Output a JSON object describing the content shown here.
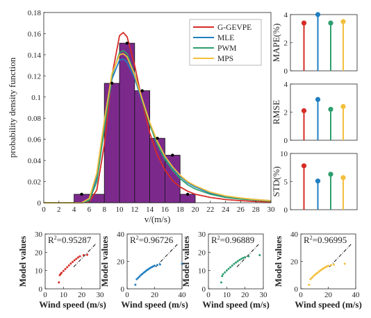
{
  "chart_data": [
    {
      "id": "main",
      "type": "bar+line",
      "title": "",
      "xlabel": "v/(m/s)",
      "ylabel": "probability density function",
      "xlim": [
        0,
        30
      ],
      "ylim": [
        0,
        0.18
      ],
      "xticks": [
        0,
        2,
        4,
        6,
        8,
        10,
        12,
        14,
        16,
        18,
        20,
        22,
        24,
        26,
        28,
        30
      ],
      "yticks": [
        0,
        0.02,
        0.04,
        0.06,
        0.08,
        0.1,
        0.12,
        0.14,
        0.16,
        0.18
      ],
      "ytick_labels": [
        "0",
        "0.02",
        "0.04",
        "0.06",
        "0.08",
        "0.1",
        "0.12",
        "0.14",
        "0.16",
        "0.18"
      ],
      "bar_color": "#7b2a8c",
      "histogram": [
        {
          "x0": 4,
          "x1": 6,
          "y": 0.008
        },
        {
          "x0": 6,
          "x1": 8,
          "y": 0.008
        },
        {
          "x0": 8,
          "x1": 10,
          "y": 0.113
        },
        {
          "x0": 10,
          "x1": 12,
          "y": 0.151
        },
        {
          "x0": 12,
          "x1": 14,
          "y": 0.106
        },
        {
          "x0": 14,
          "x1": 16,
          "y": 0.061
        },
        {
          "x0": 16,
          "x1": 18,
          "y": 0.045
        },
        {
          "x0": 18,
          "x1": 20,
          "y": 0.008
        }
      ],
      "points": [
        [
          5,
          0.008
        ],
        [
          9,
          0.113
        ],
        [
          11,
          0.151
        ],
        [
          13,
          0.106
        ],
        [
          15,
          0.061
        ],
        [
          17,
          0.045
        ],
        [
          19,
          0.008
        ]
      ],
      "legend_position": "top-right",
      "series": [
        {
          "name": "G-GEVPE",
          "color": "#d62c27",
          "x": [
            0,
            2,
            4,
            5,
            6,
            7,
            8,
            9,
            10,
            10.5,
            11,
            12,
            13,
            14,
            15,
            16,
            17,
            18,
            19,
            20,
            22,
            24,
            26,
            28,
            30
          ],
          "y": [
            0,
            0,
            0,
            0,
            0.001,
            0.012,
            0.055,
            0.12,
            0.158,
            0.161,
            0.157,
            0.13,
            0.096,
            0.066,
            0.045,
            0.031,
            0.021,
            0.015,
            0.011,
            0.008,
            0.005,
            0.003,
            0.002,
            0.0012,
            0.0008
          ]
        },
        {
          "name": "MLE",
          "color": "#1f7fc0",
          "x": [
            0,
            2,
            4,
            5,
            6,
            7,
            8,
            9,
            10,
            10.5,
            11,
            12,
            13,
            14,
            15,
            16,
            17,
            18,
            19,
            20,
            22,
            24,
            26,
            28,
            30
          ],
          "y": [
            0,
            0,
            0,
            0,
            0.003,
            0.024,
            0.072,
            0.117,
            0.135,
            0.136,
            0.133,
            0.118,
            0.096,
            0.075,
            0.057,
            0.043,
            0.033,
            0.025,
            0.019,
            0.015,
            0.009,
            0.006,
            0.004,
            0.003,
            0.002
          ]
        },
        {
          "name": "PWM",
          "color": "#2e9e6f",
          "x": [
            0,
            2,
            4,
            5,
            6,
            7,
            8,
            9,
            10,
            10.5,
            11,
            12,
            13,
            14,
            15,
            16,
            17,
            18,
            19,
            20,
            22,
            24,
            26,
            28,
            30
          ],
          "y": [
            0,
            0,
            0,
            0,
            0.002,
            0.02,
            0.07,
            0.12,
            0.142,
            0.144,
            0.141,
            0.122,
            0.097,
            0.074,
            0.055,
            0.041,
            0.031,
            0.023,
            0.017,
            0.013,
            0.008,
            0.005,
            0.0035,
            0.0025,
            0.0015
          ]
        },
        {
          "name": "MPS",
          "color": "#f3bf3c",
          "x": [
            0,
            2,
            4,
            5,
            6,
            7,
            8,
            9,
            10,
            10.5,
            11,
            12,
            13,
            14,
            15,
            16,
            17,
            18,
            19,
            20,
            22,
            24,
            26,
            28,
            30
          ],
          "y": [
            0,
            0,
            0,
            0,
            0.004,
            0.028,
            0.078,
            0.122,
            0.14,
            0.141,
            0.138,
            0.121,
            0.098,
            0.076,
            0.058,
            0.044,
            0.034,
            0.026,
            0.02,
            0.016,
            0.01,
            0.0065,
            0.0045,
            0.003,
            0.002
          ]
        }
      ]
    },
    {
      "id": "mape",
      "type": "stem",
      "ylabel": "MAPE(%)",
      "ylim": [
        0,
        4
      ],
      "yticks": [
        0,
        2,
        4
      ],
      "ytick_labels": [
        "0",
        "2",
        "4"
      ],
      "values": [
        3.4,
        4.0,
        3.4,
        3.5
      ],
      "colors": [
        "#d62c27",
        "#1f7fc0",
        "#2e9e6f",
        "#f3bf3c"
      ]
    },
    {
      "id": "rmse",
      "type": "stem",
      "ylabel": "RMSE",
      "ylim": [
        0,
        4
      ],
      "yticks": [
        0,
        2,
        4
      ],
      "ytick_labels": [
        "0",
        "2",
        "4"
      ],
      "values": [
        2.1,
        2.9,
        2.2,
        2.4
      ],
      "colors": [
        "#d62c27",
        "#1f7fc0",
        "#2e9e6f",
        "#f3bf3c"
      ]
    },
    {
      "id": "std",
      "type": "stem",
      "ylabel": "STD(%)",
      "ylim": [
        0,
        10
      ],
      "yticks": [
        0,
        5,
        10
      ],
      "ytick_labels": [
        "0",
        "5",
        "10"
      ],
      "values": [
        7.8,
        5.1,
        6.3,
        5.7
      ],
      "colors": [
        "#d62c27",
        "#1f7fc0",
        "#2e9e6f",
        "#f3bf3c"
      ]
    },
    {
      "id": "sc1",
      "type": "scatter",
      "annotation": "=0.95287",
      "xlabel": "Wind speed (m/s)",
      "ylabel": "Model values",
      "color": "#d62c27",
      "xlim": [
        0,
        30
      ],
      "ylim": [
        0,
        30
      ],
      "xticks": [
        0,
        10,
        20,
        30
      ],
      "yticks": [
        0,
        10,
        20,
        30
      ],
      "x": [
        7.5,
        8,
        8.5,
        9,
        10,
        11,
        12,
        13,
        14,
        15,
        16,
        17,
        18,
        19,
        21,
        23
      ],
      "y": [
        3.5,
        7.5,
        8.2,
        8.8,
        9.8,
        10.8,
        11.8,
        12.8,
        13.8,
        14.7,
        15.6,
        16.4,
        17.2,
        17.8,
        18.4,
        18.6
      ]
    },
    {
      "id": "sc2",
      "type": "scatter",
      "annotation": "=0.96726",
      "xlabel": "Wind speed (m/s)",
      "ylabel": "Model values",
      "color": "#1f7fc0",
      "xlim": [
        0,
        40
      ],
      "ylim": [
        0,
        40
      ],
      "xticks": [
        0,
        20,
        40
      ],
      "yticks": [
        0,
        20,
        40
      ],
      "x": [
        6,
        7,
        8,
        9,
        10,
        11,
        12,
        13,
        14,
        15,
        16,
        17,
        18,
        19,
        20,
        22,
        24,
        40
      ],
      "y": [
        3,
        7,
        8,
        9,
        10,
        10.8,
        11.7,
        12.5,
        13.3,
        14,
        14.7,
        15.3,
        15.9,
        16.4,
        16.9,
        17.4,
        17.8,
        18.2
      ]
    },
    {
      "id": "sc3",
      "type": "scatter",
      "annotation": "=0.96889",
      "xlabel": "Wind speed (m/s)",
      "ylabel": "Model values",
      "color": "#2e9e6f",
      "xlim": [
        0,
        30
      ],
      "ylim": [
        0,
        30
      ],
      "xticks": [
        0,
        10,
        20,
        30
      ],
      "yticks": [
        0,
        10,
        20,
        30
      ],
      "x": [
        7,
        7.5,
        8,
        9,
        10,
        11,
        12,
        13,
        14,
        15,
        16,
        17,
        18,
        19,
        20,
        22,
        28
      ],
      "y": [
        3.5,
        7,
        8,
        9,
        10,
        10.9,
        11.8,
        12.7,
        13.6,
        14.4,
        15.1,
        15.8,
        16.4,
        16.9,
        17.3,
        17.8,
        18.4
      ]
    },
    {
      "id": "sc4",
      "type": "scatter",
      "annotation": "=0.96995",
      "xlabel": "Wind speed (m/s)",
      "ylabel": "Model values",
      "color": "#f3bf3c",
      "xlim": [
        0,
        40
      ],
      "ylim": [
        0,
        40
      ],
      "xticks": [
        0,
        20,
        40
      ],
      "yticks": [
        0,
        20,
        40
      ],
      "x": [
        6,
        7,
        8,
        9,
        10,
        11,
        12,
        13,
        14,
        15,
        16,
        17,
        18,
        19,
        20,
        22,
        24,
        32
      ],
      "y": [
        3,
        7,
        8,
        9,
        10,
        10.8,
        11.6,
        12.4,
        13.2,
        13.9,
        14.6,
        15.2,
        15.8,
        16.3,
        16.8,
        17.3,
        17.7,
        18.3
      ]
    }
  ]
}
